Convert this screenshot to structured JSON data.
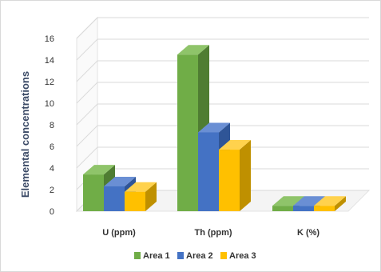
{
  "chart_data": {
    "type": "bar",
    "categories": [
      "U (ppm)",
      "Th (ppm)",
      "K (%)"
    ],
    "series": [
      {
        "name": "Area 1",
        "values": [
          3.4,
          14.5,
          0.5
        ]
      },
      {
        "name": "Area 2",
        "values": [
          2.3,
          7.3,
          0.5
        ]
      },
      {
        "name": "Area 3",
        "values": [
          1.8,
          5.7,
          0.5
        ]
      }
    ],
    "ylabel": "Elemental concentrations",
    "ylim": [
      0,
      16
    ],
    "yticks": [
      0,
      2,
      4,
      6,
      8,
      10,
      12,
      14,
      16
    ],
    "grid": true,
    "legend_position": "bottom",
    "style": "3d-clustered-column",
    "colors": {
      "Area 1": {
        "front": "#70ad47",
        "side": "#4f7d32",
        "top": "#8fc46a"
      },
      "Area 2": {
        "front": "#4472c4",
        "side": "#2f5597",
        "top": "#6a8fd4"
      },
      "Area 3": {
        "front": "#ffc000",
        "side": "#bf9000",
        "top": "#ffd24d"
      }
    }
  }
}
